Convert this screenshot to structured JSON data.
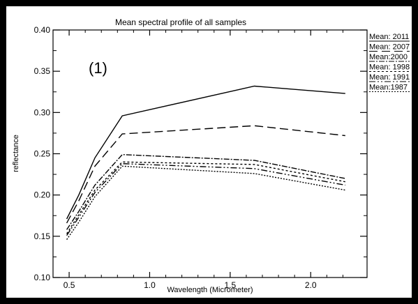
{
  "chart_data": {
    "type": "line",
    "title": "Mean spectral profile of all samples",
    "xlabel": "Wavelength (Micrometer)",
    "ylabel": "reflectance",
    "annotation": "(1)",
    "xlim": [
      0.4,
      2.35
    ],
    "ylim": [
      0.1,
      0.4
    ],
    "x_ticks": [
      0.5,
      1.0,
      1.5,
      2.0
    ],
    "x_tick_labels": [
      "0.5",
      "1.0",
      "1.5",
      "2.0"
    ],
    "y_ticks": [
      0.1,
      0.15,
      0.2,
      0.25,
      0.3,
      0.35,
      0.4
    ],
    "y_tick_labels": [
      "0.10",
      "0.15",
      "0.20",
      "0.25",
      "0.30",
      "0.35",
      "0.40"
    ],
    "grid": false,
    "legend_position": "right-top",
    "x": [
      0.485,
      0.56,
      0.66,
      0.83,
      1.65,
      2.215
    ],
    "series": [
      {
        "name": "Mean: 2011",
        "dash": "",
        "values": [
          0.171,
          0.2,
          0.245,
          0.296,
          0.332,
          0.323
        ]
      },
      {
        "name": "Mean: 2007",
        "dash": "12,6",
        "values": [
          0.166,
          0.193,
          0.235,
          0.274,
          0.284,
          0.272
        ]
      },
      {
        "name": "Mean:2000",
        "dash": "8,2,2,2",
        "values": [
          0.158,
          0.18,
          0.212,
          0.249,
          0.242,
          0.22
        ]
      },
      {
        "name": "Mean: 1998",
        "dash": "3,3",
        "values": [
          0.153,
          0.176,
          0.206,
          0.24,
          0.237,
          0.216
        ]
      },
      {
        "name": "Mean: 1991",
        "dash": "9,3,2,3,2,3",
        "values": [
          0.151,
          0.173,
          0.203,
          0.238,
          0.232,
          0.212
        ]
      },
      {
        "name": "Mean:1987",
        "dash": "2,2",
        "values": [
          0.146,
          0.167,
          0.198,
          0.235,
          0.226,
          0.206
        ]
      }
    ]
  }
}
